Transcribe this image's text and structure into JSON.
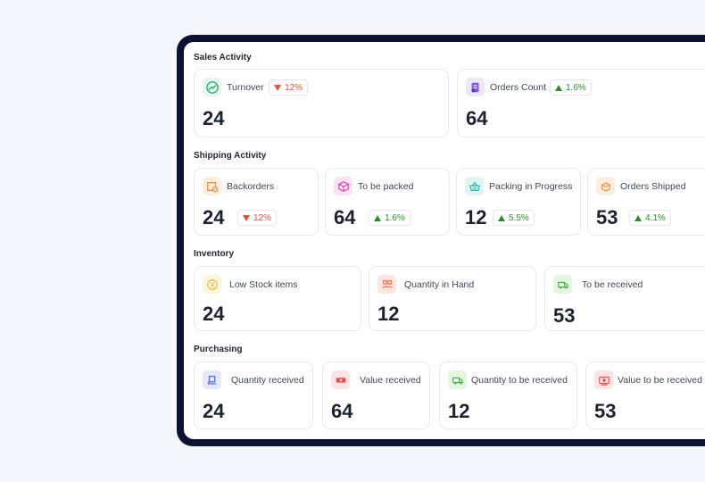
{
  "sections": {
    "sales": {
      "title": "Sales Activity",
      "cards": [
        {
          "label": "Turnover",
          "value": "24",
          "badge": "12%",
          "trend": "down",
          "icon": "chart-line-icon"
        },
        {
          "label": "Orders Count",
          "value": "64",
          "badge": "1.6%",
          "trend": "up",
          "icon": "clipboard-icon"
        }
      ]
    },
    "shipping": {
      "title": "Shipping Activity",
      "cards": [
        {
          "label": "Backorders",
          "value": "24",
          "badge": "12%",
          "trend": "down",
          "icon": "box-clock-icon"
        },
        {
          "label": "To be packed",
          "value": "64",
          "badge": "1.6%",
          "trend": "up",
          "icon": "package-icon"
        },
        {
          "label": "Packing in Progress",
          "value": "12",
          "badge": "5.5%",
          "trend": "up",
          "icon": "basket-icon"
        },
        {
          "label": "Orders Shipped",
          "value": "53",
          "badge": "4.1%",
          "trend": "up",
          "icon": "shipped-box-icon"
        }
      ]
    },
    "inventory": {
      "title": "Inventory",
      "cards": [
        {
          "label": "Low Stock items",
          "value": "24",
          "icon": "low-stock-icon"
        },
        {
          "label": "Quantity in Hand",
          "value": "12",
          "icon": "boxes-hand-icon"
        },
        {
          "label": "To be received",
          "value": "53",
          "icon": "delivery-truck-icon"
        }
      ]
    },
    "purchasing": {
      "title": "Purchasing",
      "cards": [
        {
          "label": "Quantity received",
          "value": "24",
          "icon": "cart-received-icon"
        },
        {
          "label": "Value received",
          "value": "64",
          "icon": "money-icon"
        },
        {
          "label": "Quantity to be received",
          "value": "12",
          "icon": "truck-incoming-icon"
        },
        {
          "label": "Value to be received",
          "value": "53",
          "icon": "money-pending-icon"
        }
      ]
    }
  },
  "colors": {
    "frame": "#0d1230",
    "up": "#2f8a2b",
    "down": "#e2513a"
  }
}
